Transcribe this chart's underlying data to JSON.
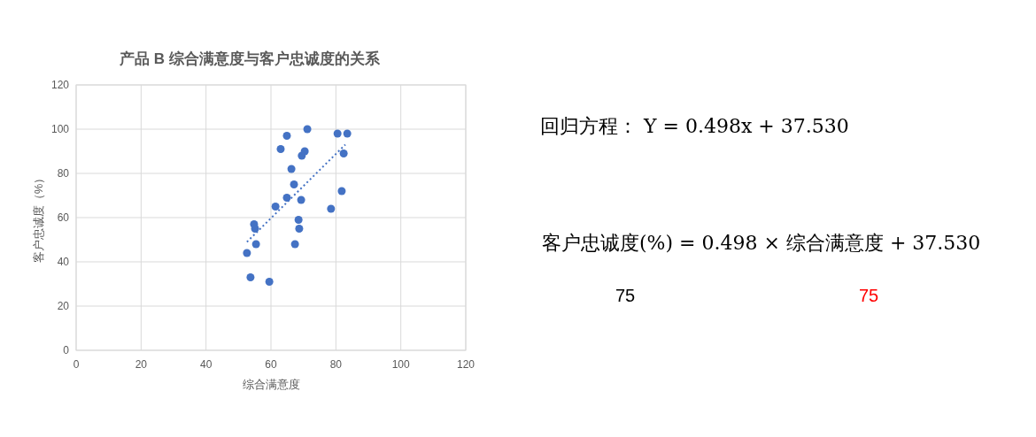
{
  "chart_data": {
    "type": "scatter",
    "title": "产品 B 综合满意度与客户忠诚度的关系",
    "xlabel": "综合满意度",
    "ylabel": "客户忠诚度（%）",
    "xlim": [
      0,
      120
    ],
    "ylim": [
      0,
      120
    ],
    "xticks": [
      0,
      20,
      40,
      60,
      80,
      100,
      120
    ],
    "yticks": [
      0,
      20,
      40,
      60,
      80,
      100,
      120
    ],
    "grid": true,
    "marker": "circle",
    "series": [
      {
        "type": "scatter",
        "color": "#4472c4",
        "x": [
          52.6,
          53.7,
          54.8,
          55.1,
          55.4,
          59.5,
          61.4,
          63.0,
          64.9,
          64.9,
          66.3,
          67.1,
          67.4,
          68.5,
          68.7,
          69.3,
          69.5,
          70.4,
          71.2,
          78.5,
          80.5,
          81.8,
          82.4,
          83.5
        ],
        "values": [
          44,
          33,
          57,
          55,
          48,
          31,
          65,
          91,
          97,
          69,
          82,
          75,
          48,
          59,
          55,
          68,
          88,
          90,
          100,
          64,
          98,
          72,
          89,
          98
        ]
      },
      {
        "type": "line",
        "color": "#4472c4",
        "line_style": "dotted",
        "marker": "none",
        "x": [
          52.6,
          82.9
        ],
        "values": [
          49,
          93
        ]
      }
    ],
    "annotations": [
      "回归方程： Y = 0.498x + 37.530",
      "客户忠诚度(%) = 0.498 × 综合满意度 + 37.530",
      "75",
      "75"
    ]
  }
}
